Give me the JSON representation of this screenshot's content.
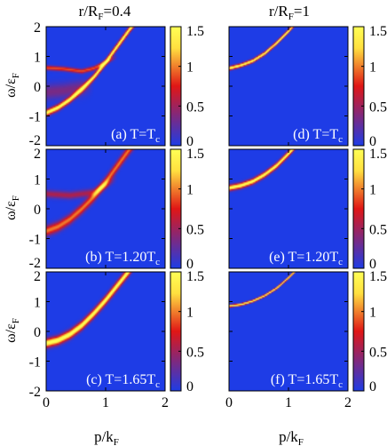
{
  "chart_data": {
    "type": "heatmap",
    "colormap": {
      "name": "blue-red-yellow",
      "stops": [
        "#1e3ce6",
        "#e01616",
        "#ffe040",
        "#ffff55"
      ],
      "range": [
        0,
        1.5
      ],
      "ticks": [
        "1.5",
        "1",
        "0.5",
        "0"
      ]
    },
    "columns": [
      {
        "title": "r/R",
        "title_sub": "F",
        "title_tail": "=0.4"
      },
      {
        "title": "r/R",
        "title_sub": "F",
        "title_tail": "=1"
      }
    ],
    "axes": {
      "xlabel": "p/k",
      "xlabel_sub": "F",
      "ylabel": "ω/ε",
      "ylabel_sub": "F",
      "xlim": [
        0,
        2
      ],
      "ylim": [
        -2,
        2
      ],
      "xticks": [
        "0",
        "1",
        "2"
      ],
      "yticks": [
        "2",
        "1",
        "0",
        "-1",
        "-2"
      ]
    },
    "panels": [
      {
        "id": "a",
        "label_pre": "(a) T=T",
        "label_sub": "c",
        "label_post": "",
        "r_over_RF": 0.4,
        "T_over_Tc": 1.0,
        "branches": [
          {
            "p": [
              0,
              0.2,
              0.4,
              0.6,
              0.8,
              1.0,
              1.2,
              1.4,
              1.6
            ],
            "omega": [
              -0.9,
              -0.72,
              -0.45,
              -0.1,
              0.3,
              0.8,
              1.35,
              1.9,
              2.4
            ],
            "peak": 1.5,
            "width": 0.1
          },
          {
            "p": [
              0,
              0.3,
              0.6,
              0.8,
              1.0
            ],
            "omega": [
              0.62,
              0.58,
              0.5,
              0.6,
              0.8
            ],
            "peak": 0.9,
            "width": 0.07
          },
          {
            "p": [
              0,
              0.3,
              0.6
            ],
            "omega": [
              -0.2,
              -0.15,
              -0.05
            ],
            "peak": 0.35,
            "width": 0.25
          }
        ]
      },
      {
        "id": "b",
        "label_pre": "(b) T=1.20T",
        "label_sub": "c",
        "label_post": "",
        "r_over_RF": 0.4,
        "T_over_Tc": 1.2,
        "branches": [
          {
            "p": [
              0,
              0.2,
              0.4,
              0.6,
              0.8,
              1.0,
              1.2,
              1.4,
              1.6
            ],
            "omega": [
              -0.75,
              -0.6,
              -0.35,
              0.0,
              0.4,
              0.9,
              1.45,
              2.0,
              2.5
            ],
            "peak": 1.0,
            "width": 0.16
          },
          {
            "p": [
              0,
              0.4,
              0.8,
              1.0
            ],
            "omega": [
              0.5,
              0.45,
              0.55,
              0.8
            ],
            "peak": 0.55,
            "width": 0.12
          }
        ]
      },
      {
        "id": "c",
        "label_pre": "(c) T=1.65T",
        "label_sub": "c",
        "label_post": "",
        "r_over_RF": 0.4,
        "T_over_Tc": 1.65,
        "branches": [
          {
            "p": [
              0,
              0.2,
              0.4,
              0.6,
              0.8,
              1.0,
              1.2,
              1.4,
              1.6
            ],
            "omega": [
              -0.4,
              -0.3,
              -0.1,
              0.2,
              0.6,
              1.05,
              1.55,
              2.05,
              2.6
            ],
            "peak": 1.5,
            "width": 0.14
          }
        ]
      },
      {
        "id": "d",
        "label_pre": "(d) T=T",
        "label_sub": "c",
        "label_post": "",
        "r_over_RF": 1.0,
        "T_over_Tc": 1.0,
        "branches": [
          {
            "p": [
              0,
              0.2,
              0.4,
              0.6,
              0.8,
              1.0,
              1.2
            ],
            "omega": [
              0.6,
              0.7,
              0.85,
              1.1,
              1.45,
              1.85,
              2.3
            ],
            "peak": 1.5,
            "width": 0.06
          }
        ]
      },
      {
        "id": "e",
        "label_pre": "(e) T=1.20T",
        "label_sub": "c",
        "label_post": "",
        "r_over_RF": 1.0,
        "T_over_Tc": 1.2,
        "branches": [
          {
            "p": [
              0,
              0.2,
              0.4,
              0.6,
              0.8,
              1.0,
              1.2
            ],
            "omega": [
              0.7,
              0.78,
              0.92,
              1.15,
              1.45,
              1.85,
              2.3
            ],
            "peak": 1.5,
            "width": 0.09
          }
        ]
      },
      {
        "id": "f",
        "label_pre": "(f) T=1.65T",
        "label_sub": "c",
        "label_post": "",
        "r_over_RF": 1.0,
        "T_over_Tc": 1.65,
        "branches": [
          {
            "p": [
              0,
              0.2,
              0.4,
              0.6,
              0.8,
              1.0,
              1.2
            ],
            "omega": [
              0.85,
              0.9,
              1.02,
              1.2,
              1.45,
              1.8,
              2.2
            ],
            "peak": 1.5,
            "width": 0.04
          }
        ]
      }
    ]
  }
}
